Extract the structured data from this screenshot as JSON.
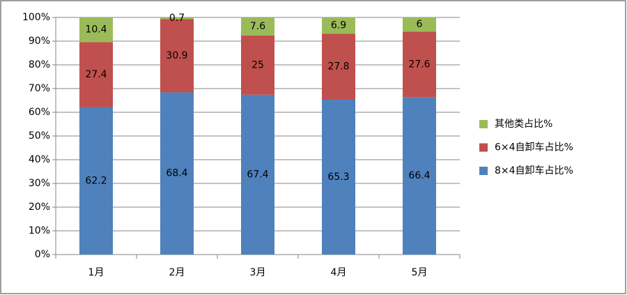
{
  "chart_data": {
    "type": "stacked-bar",
    "categories": [
      "1月",
      "2月",
      "3月",
      "4月",
      "5月"
    ],
    "series": [
      {
        "name": "8×4自卸车占比%",
        "color": "#4f81bd",
        "values": [
          62.2,
          68.4,
          67.4,
          65.3,
          66.4
        ]
      },
      {
        "name": "6×4自卸车占比%",
        "color": "#c0504d",
        "values": [
          27.4,
          30.9,
          25,
          27.8,
          27.6
        ]
      },
      {
        "name": "其他类占比%",
        "color": "#9bbb59",
        "values": [
          10.4,
          0.7,
          7.6,
          6.9,
          6
        ]
      }
    ],
    "ylim": [
      0,
      100
    ],
    "yticks": [
      {
        "value": 0,
        "label": "0%"
      },
      {
        "value": 10,
        "label": "10%"
      },
      {
        "value": 20,
        "label": "20%"
      },
      {
        "value": 30,
        "label": "30%"
      },
      {
        "value": 40,
        "label": "40%"
      },
      {
        "value": 50,
        "label": "50%"
      },
      {
        "value": 60,
        "label": "60%"
      },
      {
        "value": 70,
        "label": "70%"
      },
      {
        "value": 80,
        "label": "80%"
      },
      {
        "value": 90,
        "label": "90%"
      },
      {
        "value": 100,
        "label": "100%"
      }
    ],
    "grid": true,
    "legend": "right"
  }
}
